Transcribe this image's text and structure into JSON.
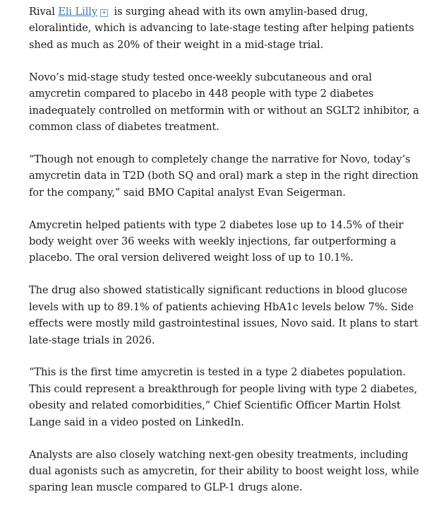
{
  "article": {
    "p1": {
      "before": "Rival ",
      "link": "Eli Lilly",
      "plus_icon": "plus-square-icon",
      "after": " is surging ahead with its own amylin-based drug, eloralintide, which is advancing to late-stage testing after helping patients shed as much as 20% of their weight in a mid-stage trial."
    },
    "p2": "Novo’s mid-stage study tested once-weekly subcutaneous and oral amycretin compared to placebo in 448 people with type 2 diabetes inadequately controlled on metformin with or without an SGLT2 inhibitor, a common class of diabetes treatment.",
    "p3": "“Though not enough to completely change the narrative for Novo, today’s amycretin data in T2D (both SQ and oral) mark a step in the right direction for the company,” said BMO Capital analyst Evan Seigerman.",
    "p4": "Amycretin helped patients with type 2 diabetes lose up to 14.5% of their body weight over 36 weeks with weekly injections, far outperforming a placebo. The oral version delivered weight loss of up to 10.1%.",
    "p5": "The drug also showed statistically significant reductions in blood glucose levels with up to 89.1% of patients achieving HbA1c levels below 7%. Side effects were mostly mild gastrointestinal issues, Novo said. It plans to start late-stage trials in 2026.",
    "p6": "“This is the first time amycretin is tested in a type 2 diabetes population. This could represent a breakthrough for people living with type 2 diabetes, obesity and related comorbidities,” Chief Scientific Officer Martin Holst Lange said in a video posted on LinkedIn.",
    "p7": "Analysts are also closely watching next-gen obesity treatments, including dual agonists such as amycretin, for their ability to boost weight loss, while sparing lean muscle compared to GLP-1 drugs alone."
  }
}
